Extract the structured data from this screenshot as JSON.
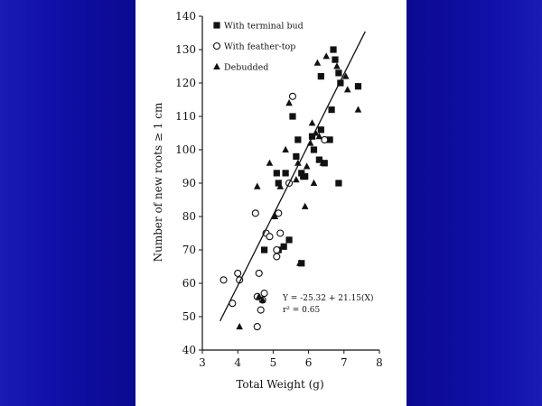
{
  "chart_data": {
    "type": "scatter",
    "xlabel": "Total Weight (g)",
    "ylabel": "Number of new roots ≥ 1 cm",
    "xlim": [
      3,
      8
    ],
    "ylim": [
      40,
      140
    ],
    "xticks": [
      3,
      4,
      5,
      6,
      7,
      8
    ],
    "yticks": [
      40,
      50,
      60,
      70,
      80,
      90,
      100,
      110,
      120,
      130,
      140
    ],
    "legend_position": "top-left",
    "grid": false,
    "series": [
      {
        "name": "With terminal bud",
        "marker": "square",
        "points": [
          [
            4.75,
            70
          ],
          [
            5.1,
            93
          ],
          [
            5.15,
            90
          ],
          [
            5.15,
            70
          ],
          [
            5.3,
            71
          ],
          [
            5.45,
            73
          ],
          [
            5.35,
            93
          ],
          [
            5.55,
            110
          ],
          [
            5.65,
            98
          ],
          [
            5.7,
            103
          ],
          [
            5.8,
            66
          ],
          [
            5.8,
            93
          ],
          [
            5.9,
            92
          ],
          [
            6.1,
            104
          ],
          [
            6.15,
            100
          ],
          [
            6.3,
            97
          ],
          [
            6.35,
            106
          ],
          [
            6.45,
            96
          ],
          [
            6.6,
            103
          ],
          [
            6.65,
            112
          ],
          [
            6.7,
            130
          ],
          [
            6.75,
            127
          ],
          [
            6.85,
            123
          ],
          [
            6.85,
            90
          ],
          [
            6.9,
            120
          ],
          [
            7.4,
            119
          ],
          [
            6.35,
            122
          ],
          [
            5.85,
            92
          ]
        ]
      },
      {
        "name": "With feather-top",
        "marker": "circle",
        "points": [
          [
            3.6,
            61
          ],
          [
            3.85,
            54
          ],
          [
            4,
            63
          ],
          [
            4.05,
            61
          ],
          [
            4.5,
            81
          ],
          [
            4.55,
            56
          ],
          [
            4.6,
            63
          ],
          [
            4.65,
            52
          ],
          [
            4.75,
            57
          ],
          [
            4.7,
            55
          ],
          [
            4.8,
            75
          ],
          [
            4.9,
            74
          ],
          [
            5.1,
            70
          ],
          [
            5.1,
            68
          ],
          [
            5.15,
            81
          ],
          [
            5.2,
            75
          ],
          [
            5.45,
            90
          ],
          [
            5.55,
            116
          ],
          [
            6.45,
            103
          ],
          [
            4.55,
            47
          ]
        ]
      },
      {
        "name": "Debudded",
        "marker": "triangle",
        "points": [
          [
            4.05,
            47
          ],
          [
            4.55,
            89
          ],
          [
            4.6,
            56
          ],
          [
            4.7,
            55
          ],
          [
            4.9,
            96
          ],
          [
            5.05,
            80
          ],
          [
            5.2,
            89
          ],
          [
            5.35,
            100
          ],
          [
            5.45,
            114
          ],
          [
            5.65,
            91
          ],
          [
            5.7,
            96
          ],
          [
            5.75,
            66
          ],
          [
            5.9,
            83
          ],
          [
            5.95,
            95
          ],
          [
            6.05,
            102
          ],
          [
            6.1,
            108
          ],
          [
            6.15,
            90
          ],
          [
            6.2,
            105
          ],
          [
            6.3,
            104
          ],
          [
            6.4,
            96
          ],
          [
            6.5,
            128
          ],
          [
            6.25,
            126
          ],
          [
            6.8,
            125
          ],
          [
            7.05,
            122
          ],
          [
            7.1,
            118
          ],
          [
            7.4,
            112
          ]
        ]
      }
    ],
    "regression": {
      "slope": 21.15,
      "intercept": -25.32,
      "x_range": [
        3.5,
        7.6
      ],
      "equation": "Y = -25.32 + 21.15(X)",
      "r2": "r² = 0.65"
    }
  }
}
